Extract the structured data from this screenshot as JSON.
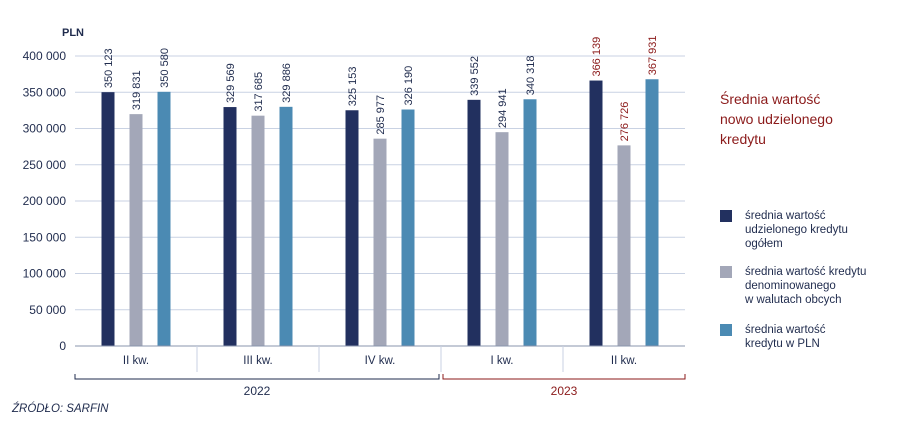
{
  "chart_data": {
    "type": "bar",
    "unit_label": "PLN",
    "ylim": [
      0,
      400000
    ],
    "y_ticks": [
      "0",
      "50 000",
      "100 000",
      "150 000",
      "200 000",
      "250 000",
      "300 000",
      "350 000",
      "400 000"
    ],
    "categories": [
      "II kw.",
      "III kw.",
      "IV kw.",
      "I kw.",
      "II kw."
    ],
    "years": [
      {
        "label": "2022",
        "categories": [
          0,
          1,
          2
        ],
        "highlight": false
      },
      {
        "label": "2023",
        "categories": [
          3,
          4
        ],
        "highlight": true
      }
    ],
    "highlight_category": 4,
    "grid": "horizontal",
    "legend_position": "right",
    "legend_title": "Średnia wartość\nnowo udzielonego\nkredytu",
    "series": [
      {
        "name": "średnia wartość\nudzielonego kredytu\nogółem",
        "color": "#22305f",
        "values": [
          350123,
          329569,
          325153,
          339552,
          366139
        ],
        "labels": [
          "350 123",
          "329 569",
          "325 153",
          "339 552",
          "366 139"
        ]
      },
      {
        "name": "średnia wartość kredytu\ndenominowanego\nw walutach obcych",
        "color": "#a3a7b8",
        "values": [
          319831,
          317685,
          285977,
          294941,
          276726
        ],
        "labels": [
          "319 831",
          "317 685",
          "285 977",
          "294 941",
          "276 726"
        ]
      },
      {
        "name": "średnia wartość\nkredytu w PLN",
        "color": "#4b8ab3",
        "values": [
          350580,
          329886,
          326190,
          340318,
          367931
        ],
        "labels": [
          "350 580",
          "329 886",
          "326 190",
          "340 318",
          "367 931"
        ]
      }
    ]
  },
  "source": "ŹRÓDŁO: SARFIN"
}
